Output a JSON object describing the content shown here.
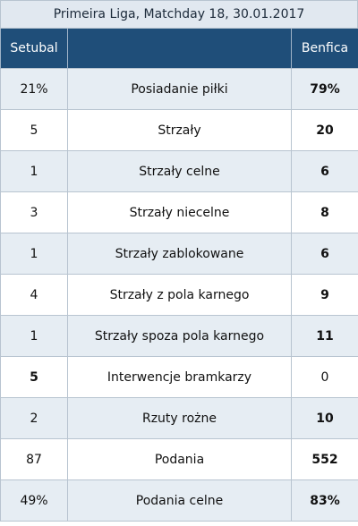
{
  "header": {
    "title": "Primeira Liga, Matchday 18, 30.01.2017"
  },
  "teams": {
    "home": "Setubal",
    "away": "Benfica"
  },
  "stats": [
    {
      "label": "Posiadanie piłki",
      "home": "21%",
      "away": "79%",
      "leader": "away"
    },
    {
      "label": "Strzały",
      "home": "5",
      "away": "20",
      "leader": "away"
    },
    {
      "label": "Strzały celne",
      "home": "1",
      "away": "6",
      "leader": "away"
    },
    {
      "label": "Strzały niecelne",
      "home": "3",
      "away": "8",
      "leader": "away"
    },
    {
      "label": "Strzały zablokowane",
      "home": "1",
      "away": "6",
      "leader": "away"
    },
    {
      "label": "Strzały z pola karnego",
      "home": "4",
      "away": "9",
      "leader": "away"
    },
    {
      "label": "Strzały spoza pola karnego",
      "home": "1",
      "away": "11",
      "leader": "away"
    },
    {
      "label": "Interwencje bramkarzy",
      "home": "5",
      "away": "0",
      "leader": "home"
    },
    {
      "label": "Rzuty rożne",
      "home": "2",
      "away": "10",
      "leader": "away"
    },
    {
      "label": "Podania",
      "home": "87",
      "away": "552",
      "leader": "away"
    },
    {
      "label": "Podania celne",
      "home": "49%",
      "away": "83%",
      "leader": "away"
    }
  ]
}
